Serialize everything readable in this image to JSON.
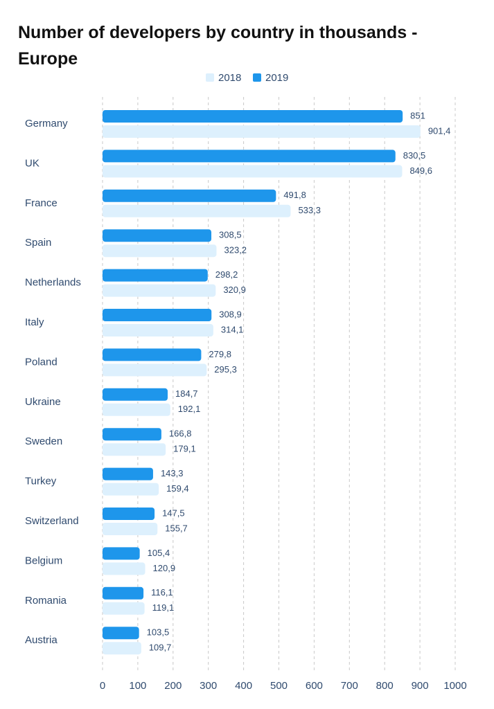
{
  "chart_data": {
    "type": "bar",
    "orientation": "horizontal",
    "title": "Number of developers by country in thousands - Europe",
    "categories": [
      "Germany",
      "UK",
      "France",
      "Spain",
      "Netherlands",
      "Italy",
      "Poland",
      "Ukraine",
      "Sweden",
      "Turkey",
      "Switzerland",
      "Belgium",
      "Romania",
      "Austria"
    ],
    "series": [
      {
        "name": "2018",
        "color": "#ddf0fd",
        "values": [
          901.4,
          849.6,
          533.3,
          323.2,
          320.9,
          314.1,
          295.3,
          192.1,
          179.1,
          159.4,
          155.7,
          120.9,
          119.1,
          109.7
        ],
        "value_labels": [
          "901,4",
          "849,6",
          "533,3",
          "323,2",
          "320,9",
          "314,1",
          "295,3",
          "192,1",
          "179,1",
          "159,4",
          "155,7",
          "120,9",
          "119,1",
          "109,7"
        ]
      },
      {
        "name": "2019",
        "color": "#1e96eb",
        "values": [
          851,
          830.5,
          491.8,
          308.5,
          298.2,
          308.9,
          279.8,
          184.7,
          166.8,
          143.3,
          147.5,
          105.4,
          116.1,
          103.5
        ],
        "value_labels": [
          "851",
          "830,5",
          "491,8",
          "308,5",
          "298,2",
          "308,9",
          "279,8",
          "184,7",
          "166,8",
          "143,3",
          "147,5",
          "105,4",
          "116,1",
          "103,5"
        ]
      }
    ],
    "xlim": [
      0,
      1000
    ],
    "xticks": [
      0,
      100,
      200,
      300,
      400,
      500,
      600,
      700,
      800,
      900,
      1000
    ],
    "grid": true,
    "legend": "top"
  }
}
